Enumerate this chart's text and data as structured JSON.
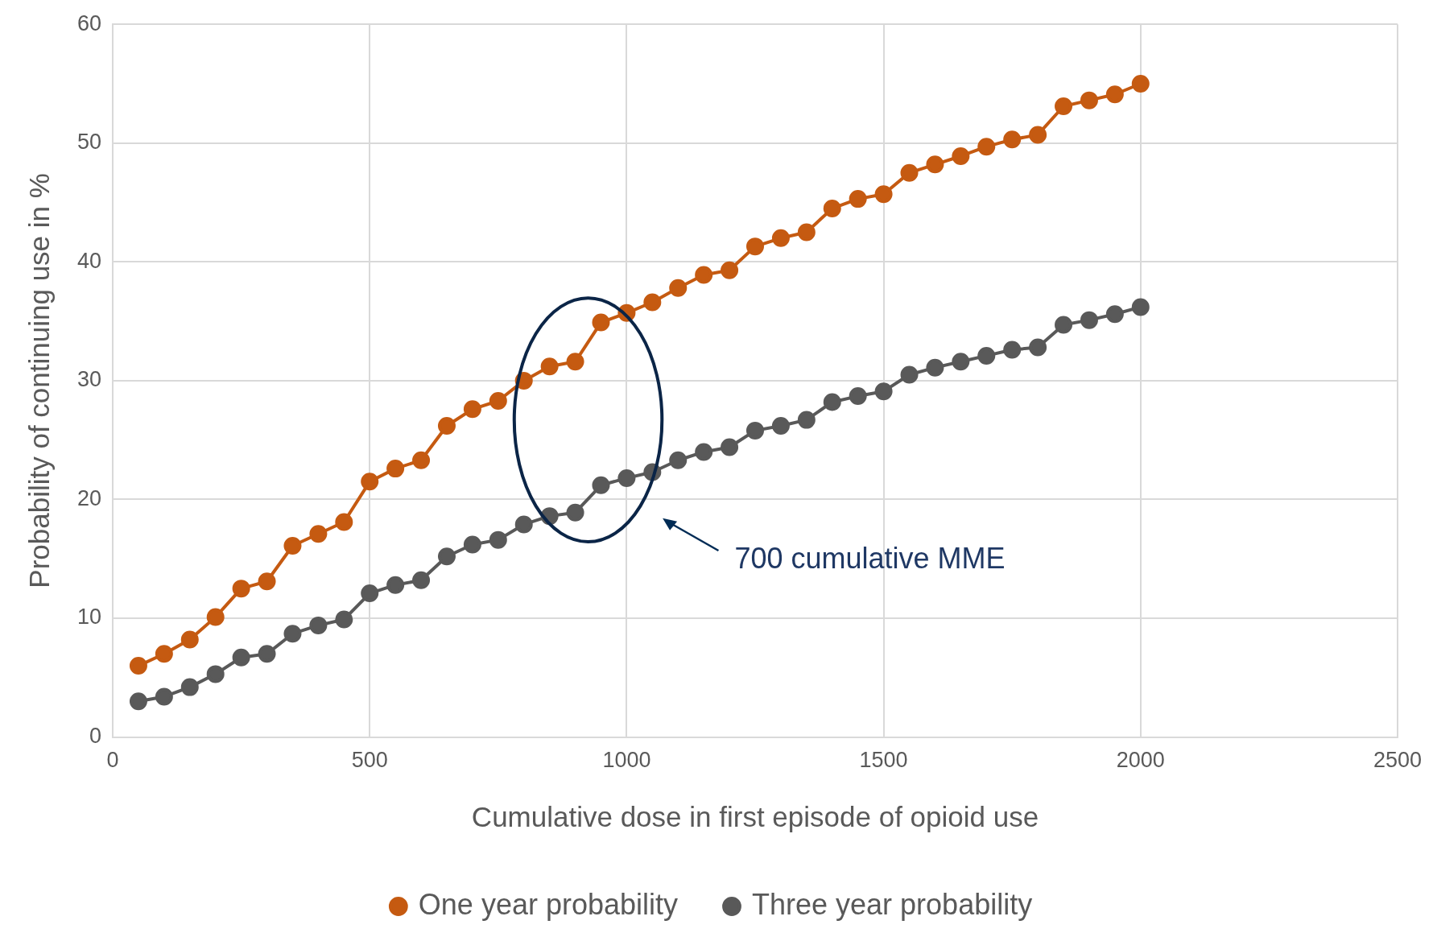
{
  "chart_data": {
    "type": "line",
    "xlabel": "Cumulative dose in first episode of opioid use",
    "ylabel": "Probability of continuing use in %",
    "x": [
      50,
      100,
      150,
      200,
      250,
      300,
      350,
      400,
      450,
      500,
      550,
      600,
      650,
      700,
      750,
      800,
      850,
      900,
      950,
      1000,
      1050,
      1100,
      1150,
      1200,
      1250,
      1300,
      1350,
      1400,
      1450,
      1500,
      1550,
      1600,
      1650,
      1700,
      1750,
      1800,
      1850,
      1900,
      1950,
      2000
    ],
    "series": [
      {
        "name": "One year probability",
        "color": "#c55a11",
        "values": [
          6.0,
          7.0,
          8.2,
          10.1,
          12.5,
          13.1,
          16.1,
          17.1,
          18.1,
          21.5,
          22.6,
          23.3,
          26.2,
          27.6,
          28.3,
          30.0,
          31.2,
          31.6,
          34.9,
          35.7,
          36.6,
          37.8,
          38.9,
          39.3,
          41.3,
          42.0,
          42.5,
          44.5,
          45.3,
          45.7,
          47.5,
          48.2,
          48.9,
          49.7,
          50.3,
          50.7,
          53.1,
          53.6,
          54.1,
          55.0
        ]
      },
      {
        "name": "Three year probability",
        "color": "#595959",
        "values": [
          3.0,
          3.4,
          4.2,
          5.3,
          6.7,
          7.0,
          8.7,
          9.4,
          9.9,
          12.1,
          12.8,
          13.2,
          15.2,
          16.2,
          16.6,
          17.9,
          18.6,
          18.9,
          21.2,
          21.8,
          22.3,
          23.3,
          24.0,
          24.4,
          25.8,
          26.2,
          26.7,
          28.2,
          28.7,
          29.1,
          30.5,
          31.1,
          31.6,
          32.1,
          32.6,
          32.8,
          34.7,
          35.1,
          35.6,
          36.2
        ]
      }
    ],
    "xlim": [
      0,
      2500
    ],
    "xticks": [
      0,
      500,
      1000,
      1500,
      2000,
      2500
    ],
    "ylim": [
      0,
      60
    ],
    "yticks": [
      0,
      10,
      20,
      30,
      40,
      50,
      60
    ],
    "grid": true,
    "legend": "bottom",
    "marker": "circle",
    "line_style": "solid",
    "annotations": [
      "700 cumulative MME"
    ]
  }
}
